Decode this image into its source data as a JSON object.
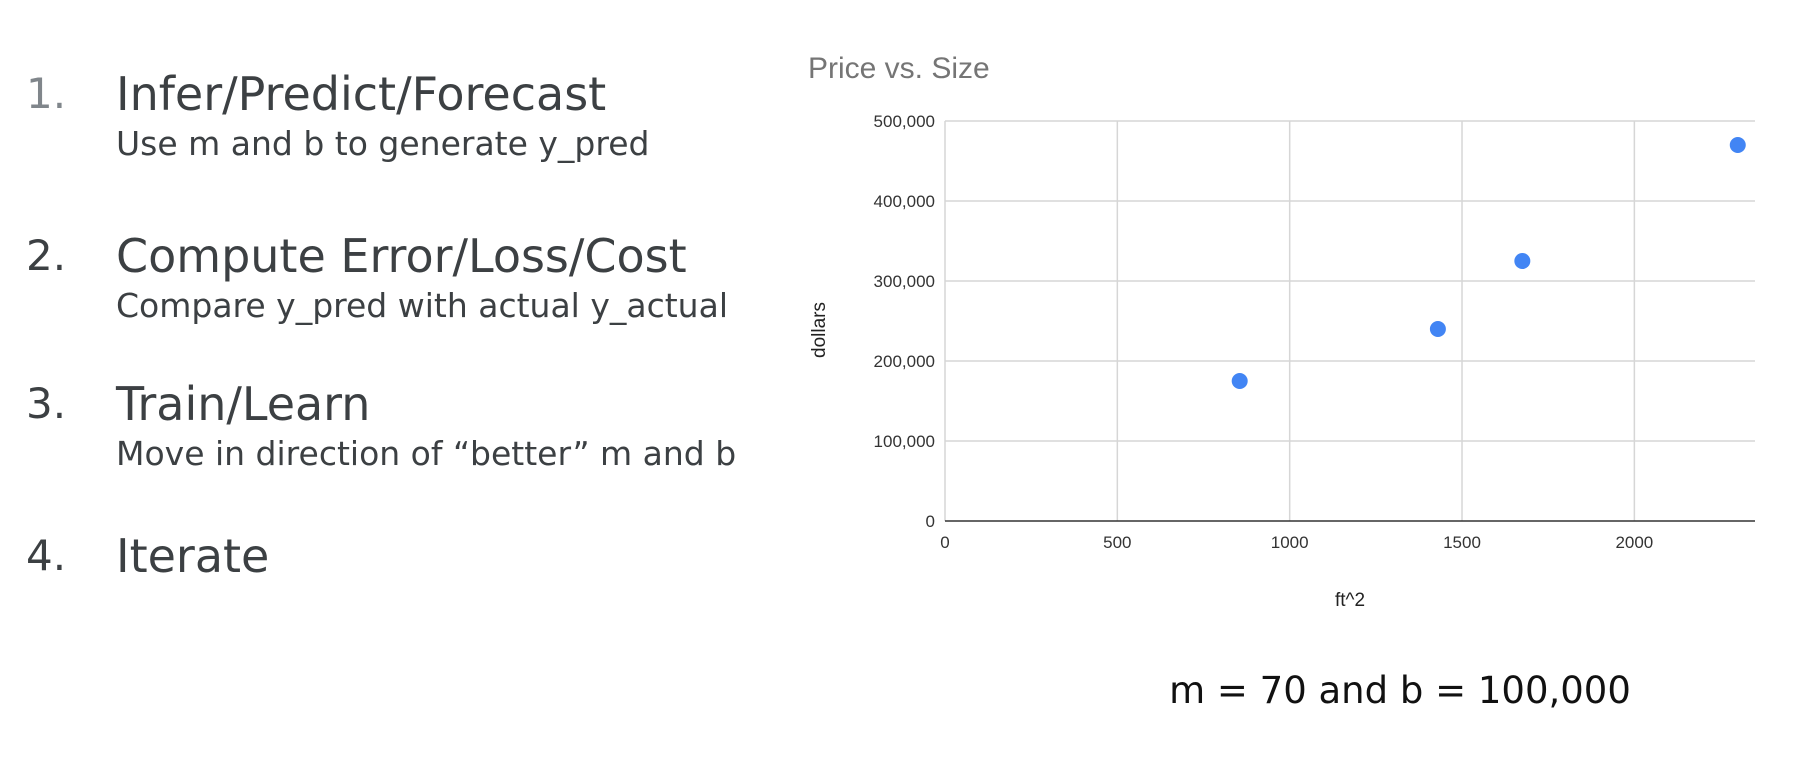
{
  "steps": [
    {
      "number": "1.",
      "title": "Infer/Predict/Forecast",
      "subtitle": "Use m and b to generate y_pred"
    },
    {
      "number": "2.",
      "title": "Compute Error/Loss/Cost",
      "subtitle": "Compare y_pred with actual y_actual"
    },
    {
      "number": "3.",
      "title": "Train/Learn",
      "subtitle": "Move in direction of “better” m and b"
    },
    {
      "number": "4.",
      "title": "Iterate",
      "subtitle": ""
    }
  ],
  "note": "m = 70 and b = 100,000",
  "chart_data": {
    "type": "scatter",
    "title": "Price vs. Size",
    "xlabel": "ft^2",
    "ylabel": "dollars",
    "xlim": [
      0,
      2350
    ],
    "ylim": [
      0,
      500000
    ],
    "x_ticks": [
      0,
      500,
      1000,
      1500,
      2000
    ],
    "x_tick_labels": [
      "0",
      "500",
      "1000",
      "1500",
      "2000"
    ],
    "y_ticks": [
      0,
      100000,
      200000,
      300000,
      400000,
      500000
    ],
    "y_tick_labels": [
      "0",
      "100,000",
      "200,000",
      "300,000",
      "400,000",
      "500,000"
    ],
    "grid": true,
    "series": [
      {
        "color": "#4285f4",
        "points": [
          {
            "x": 855,
            "y": 175000
          },
          {
            "x": 1430,
            "y": 240000
          },
          {
            "x": 1675,
            "y": 325000
          },
          {
            "x": 2300,
            "y": 470000
          }
        ]
      }
    ]
  }
}
